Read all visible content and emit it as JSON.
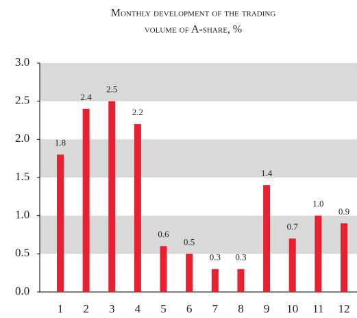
{
  "chart_data": {
    "type": "bar",
    "title": [
      "Monthly development of the trading",
      "volume of A-share, %"
    ],
    "categories": [
      "1",
      "2",
      "3",
      "4",
      "5",
      "6",
      "7",
      "8",
      "9",
      "10",
      "11",
      "12"
    ],
    "values": [
      1.8,
      2.4,
      2.5,
      2.2,
      0.6,
      0.5,
      0.3,
      0.3,
      1.4,
      0.7,
      1.0,
      0.9
    ],
    "value_labels": [
      "1.8",
      "2.4",
      "2.5",
      "2.2",
      "0.6",
      "0.5",
      "0.3",
      "0.3",
      "1.4",
      "0.7",
      "1.0",
      "0.9"
    ],
    "color": "#e8202f",
    "ylim": [
      0,
      3
    ],
    "yticks": [
      {
        "value": 0,
        "label": "0.0"
      },
      0.5,
      {
        "value": 1,
        "label": "1.0"
      },
      1.5,
      {
        "value": 2,
        "label": "2.0"
      },
      2.5,
      {
        "value": 3,
        "label": "3.0"
      }
    ],
    "grid_bands": true,
    "band_color": "#d9d9d9"
  }
}
